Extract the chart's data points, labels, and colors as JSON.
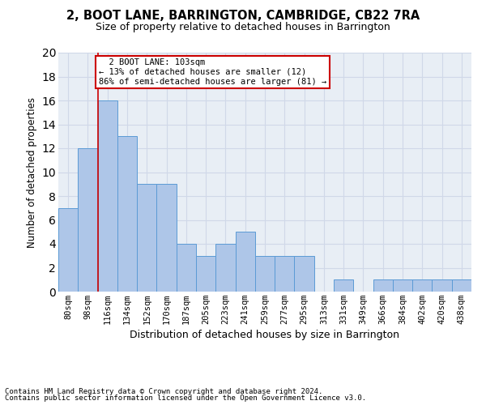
{
  "title1": "2, BOOT LANE, BARRINGTON, CAMBRIDGE, CB22 7RA",
  "title2": "Size of property relative to detached houses in Barrington",
  "xlabel": "Distribution of detached houses by size in Barrington",
  "ylabel": "Number of detached properties",
  "footnote1": "Contains HM Land Registry data © Crown copyright and database right 2024.",
  "footnote2": "Contains public sector information licensed under the Open Government Licence v3.0.",
  "bar_labels": [
    "80sqm",
    "98sqm",
    "116sqm",
    "134sqm",
    "152sqm",
    "170sqm",
    "187sqm",
    "205sqm",
    "223sqm",
    "241sqm",
    "259sqm",
    "277sqm",
    "295sqm",
    "313sqm",
    "331sqm",
    "349sqm",
    "366sqm",
    "384sqm",
    "402sqm",
    "420sqm",
    "438sqm"
  ],
  "bar_values": [
    7,
    12,
    16,
    13,
    9,
    9,
    4,
    3,
    4,
    5,
    3,
    3,
    3,
    0,
    1,
    0,
    1,
    1,
    1,
    1,
    1
  ],
  "bar_color": "#aec6e8",
  "bar_edge_color": "#5b9bd5",
  "grid_color": "#d0d8e8",
  "annotation_text": "  2 BOOT LANE: 103sqm\n← 13% of detached houses are smaller (12)\n86% of semi-detached houses are larger (81) →",
  "annotation_box_color": "#ffffff",
  "annotation_box_edge_color": "#cc0000",
  "vline_color": "#cc0000",
  "ylim": [
    0,
    20
  ],
  "yticks": [
    0,
    2,
    4,
    6,
    8,
    10,
    12,
    14,
    16,
    18,
    20
  ],
  "background_color": "#e8eef5",
  "title1_fontsize": 10.5,
  "title2_fontsize": 9,
  "ylabel_fontsize": 8.5,
  "xlabel_fontsize": 9,
  "tick_fontsize": 7.5,
  "footnote_fontsize": 6.5
}
